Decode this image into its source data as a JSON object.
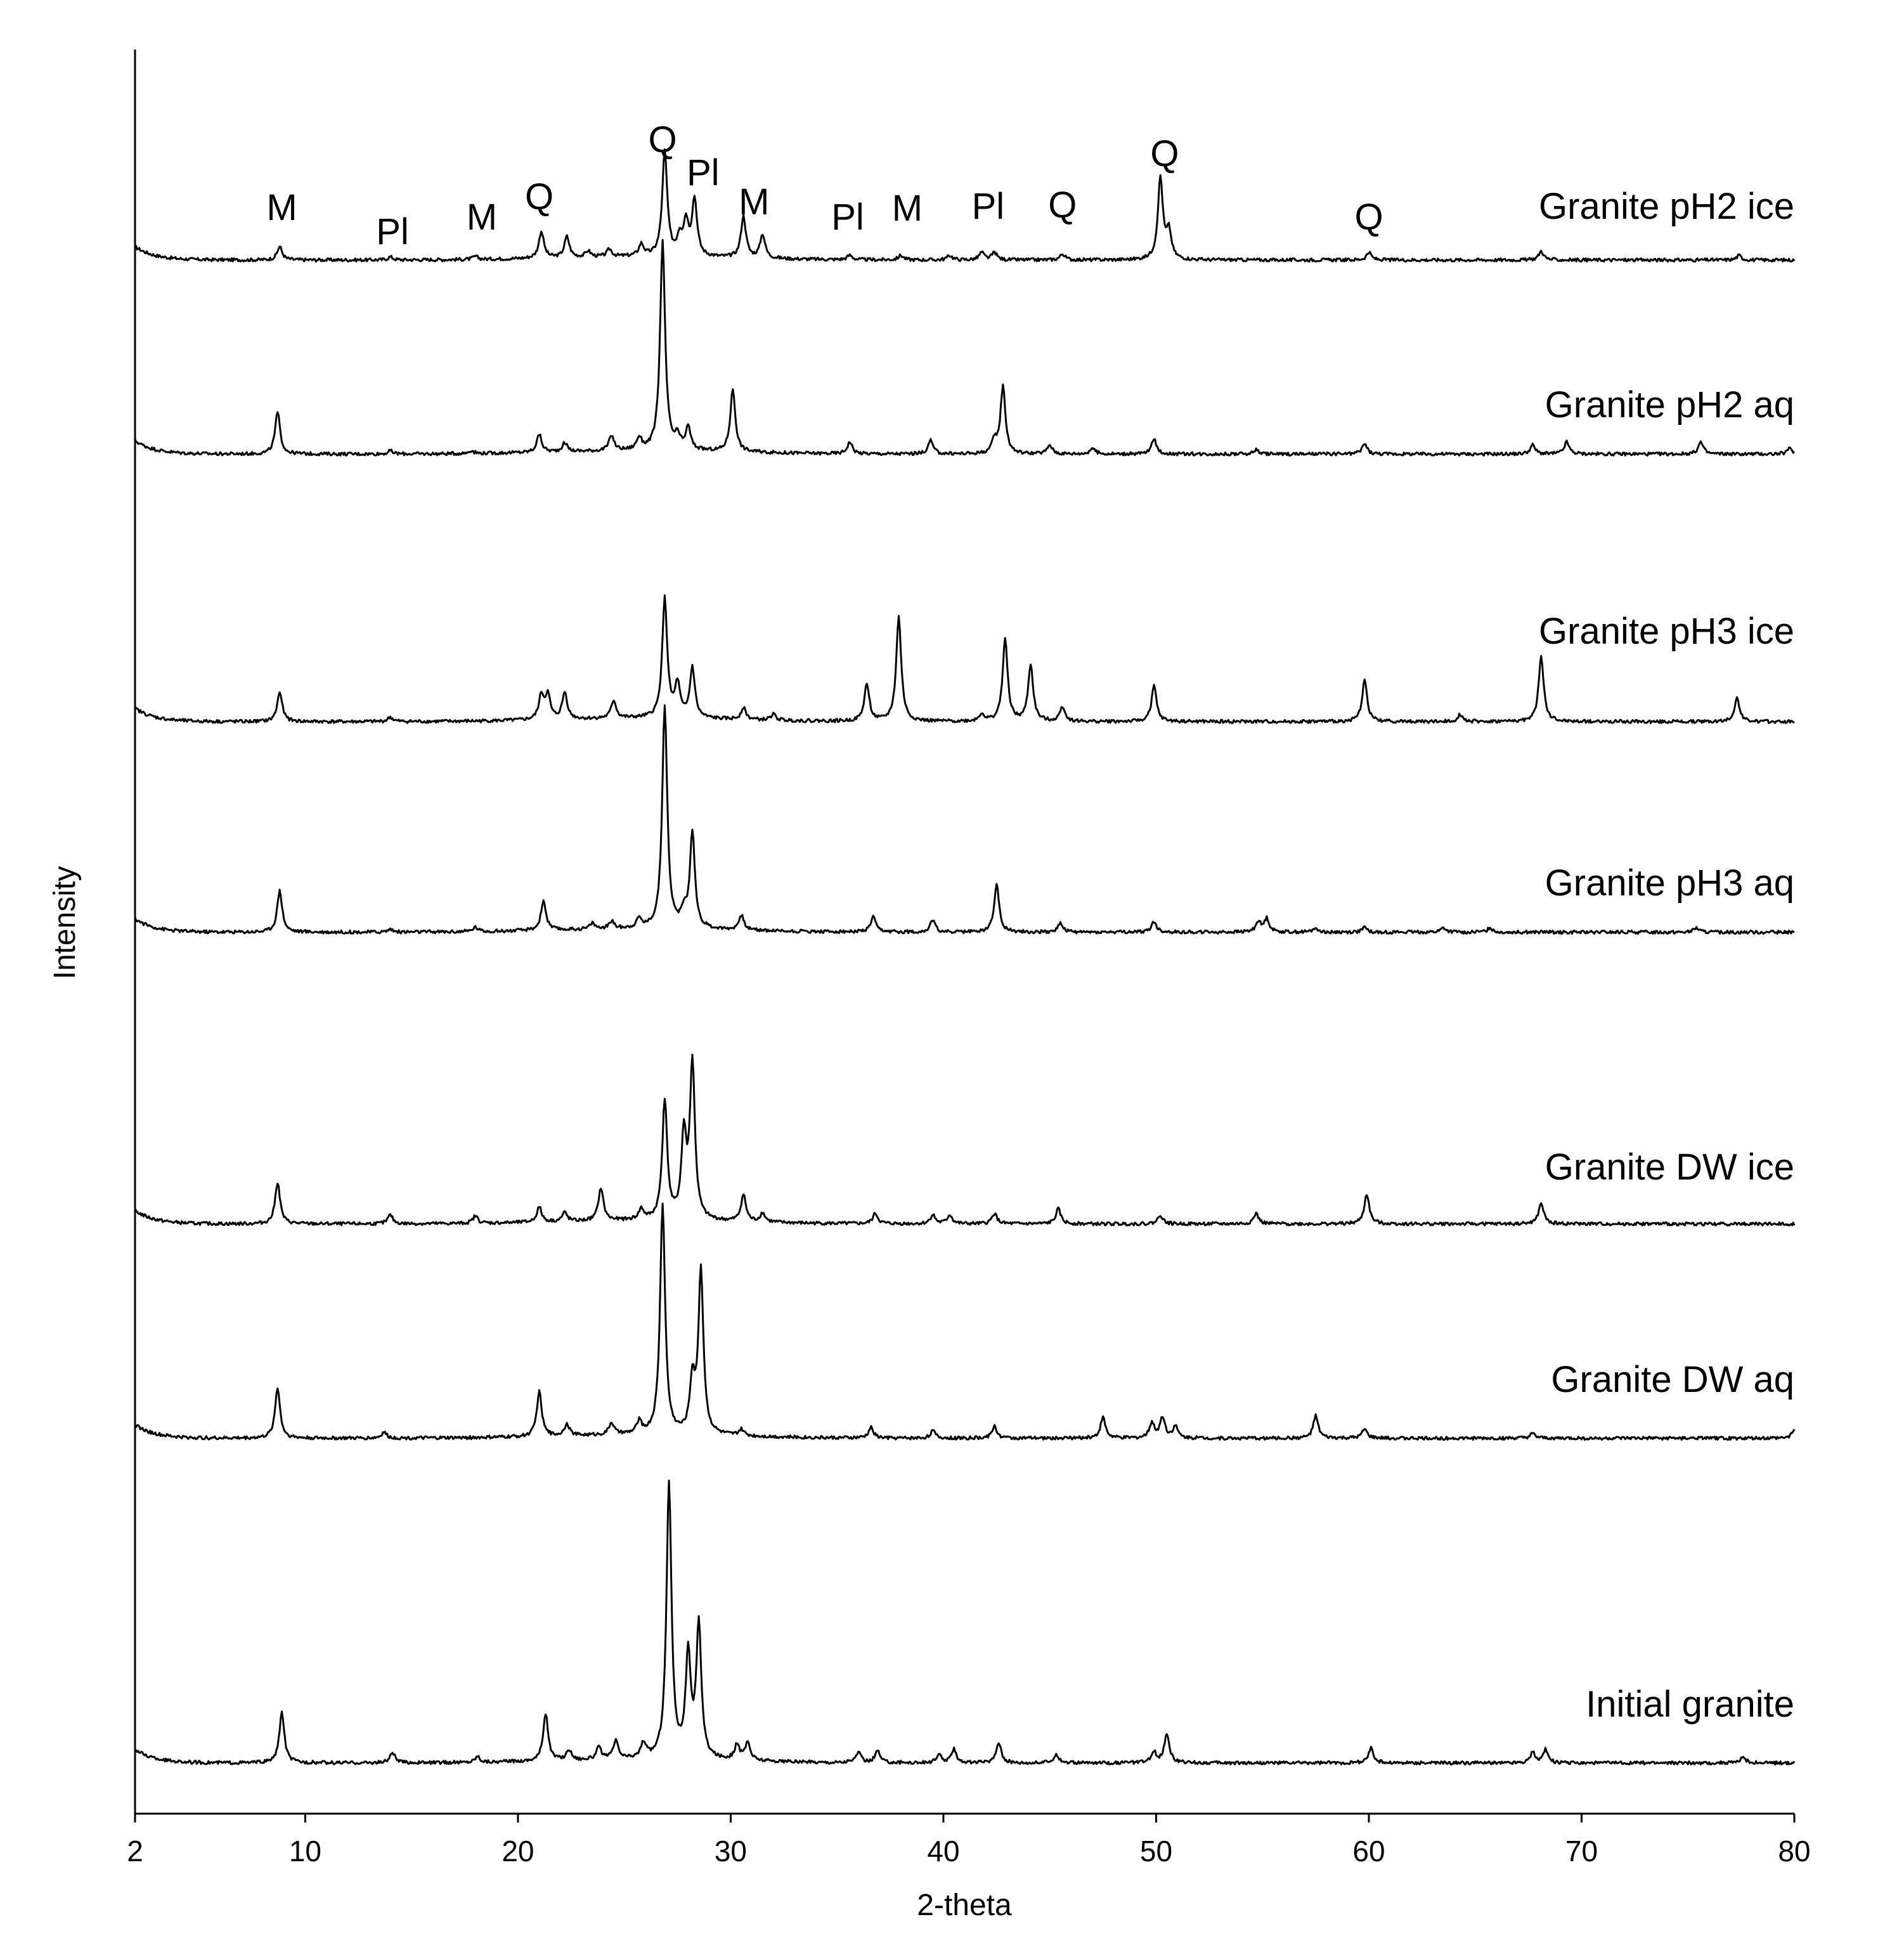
{
  "chart_data": {
    "type": "line",
    "title": "",
    "xlabel": "2-theta",
    "ylabel": "Intensity",
    "xlim": [
      2,
      80
    ],
    "x_ticks": [
      2,
      10,
      20,
      30,
      40,
      50,
      60,
      70,
      80
    ],
    "y_ticks": [],
    "grid": false,
    "legend": "none",
    "line_color": "#000000",
    "series": [
      {
        "name": "Granite pH2 ice",
        "peaks": [
          [
            8.8,
            9
          ],
          [
            14,
            2
          ],
          [
            18,
            2
          ],
          [
            21.1,
            18
          ],
          [
            22.3,
            14
          ],
          [
            23.3,
            4
          ],
          [
            24.3,
            5
          ],
          [
            25.8,
            8
          ],
          [
            26.9,
            70
          ],
          [
            27.6,
            12
          ],
          [
            27.9,
            22
          ],
          [
            28.3,
            38
          ],
          [
            30.6,
            28
          ],
          [
            31.5,
            16
          ],
          [
            35.6,
            3
          ],
          [
            38,
            3
          ],
          [
            40.3,
            3
          ],
          [
            41.8,
            5
          ],
          [
            42.4,
            5
          ],
          [
            45.6,
            4
          ],
          [
            50.2,
            55
          ],
          [
            50.6,
            18
          ],
          [
            60,
            5
          ],
          [
            68.1,
            6
          ],
          [
            77.4,
            3
          ]
        ]
      },
      {
        "name": "Granite pH2 aq",
        "peaks": [
          [
            8.7,
            28
          ],
          [
            14,
            2
          ],
          [
            17.8,
            2
          ],
          [
            21,
            12
          ],
          [
            22.2,
            6
          ],
          [
            24.4,
            10
          ],
          [
            25.7,
            8
          ],
          [
            26.8,
            140
          ],
          [
            27.5,
            8
          ],
          [
            28,
            15
          ],
          [
            30.1,
            42
          ],
          [
            35.6,
            8
          ],
          [
            39.4,
            9
          ],
          [
            42.4,
            8
          ],
          [
            42.8,
            45
          ],
          [
            45,
            6
          ],
          [
            47,
            4
          ],
          [
            49.9,
            10
          ],
          [
            54.7,
            3
          ],
          [
            59.8,
            7
          ],
          [
            67.7,
            6
          ],
          [
            69.3,
            8
          ],
          [
            75.6,
            8
          ],
          [
            79.8,
            4
          ]
        ]
      },
      {
        "name": "Granite pH3 ice",
        "peaks": [
          [
            8.8,
            20
          ],
          [
            14,
            3
          ],
          [
            21.1,
            16
          ],
          [
            21.4,
            16
          ],
          [
            22.2,
            18
          ],
          [
            24.5,
            12
          ],
          [
            26.9,
            80
          ],
          [
            27.5,
            22
          ],
          [
            28.2,
            34
          ],
          [
            30.6,
            8
          ],
          [
            32,
            4
          ],
          [
            36.4,
            25
          ],
          [
            37.9,
            70
          ],
          [
            41.8,
            5
          ],
          [
            42.9,
            55
          ],
          [
            44.1,
            38
          ],
          [
            45.6,
            10
          ],
          [
            49.9,
            24
          ],
          [
            59.8,
            28
          ],
          [
            64.3,
            5
          ],
          [
            68.1,
            44
          ],
          [
            77.3,
            16
          ]
        ]
      },
      {
        "name": "Granite pH3 aq",
        "peaks": [
          [
            8.8,
            28
          ],
          [
            14,
            2
          ],
          [
            18,
            3
          ],
          [
            21.2,
            20
          ],
          [
            23.5,
            4
          ],
          [
            24.4,
            5
          ],
          [
            25.7,
            6
          ],
          [
            26.9,
            150
          ],
          [
            27.8,
            10
          ],
          [
            28.2,
            64
          ],
          [
            30.5,
            10
          ],
          [
            36.7,
            10
          ],
          [
            39.5,
            8
          ],
          [
            42.5,
            32
          ],
          [
            45.5,
            6
          ],
          [
            49.9,
            7
          ],
          [
            54.8,
            7
          ],
          [
            55.2,
            9
          ],
          [
            57.5,
            3
          ],
          [
            59.8,
            3
          ],
          [
            63.5,
            3
          ],
          [
            65.7,
            3
          ],
          [
            75.4,
            3
          ]
        ]
      },
      {
        "name": "Granite DW ice",
        "peaks": [
          [
            8.7,
            28
          ],
          [
            14,
            6
          ],
          [
            18,
            5
          ],
          [
            21,
            10
          ],
          [
            22.2,
            6
          ],
          [
            23.9,
            22
          ],
          [
            25.8,
            7
          ],
          [
            26.9,
            80
          ],
          [
            27.8,
            55
          ],
          [
            28.2,
            105
          ],
          [
            30.6,
            18
          ],
          [
            31.5,
            6
          ],
          [
            36.8,
            7
          ],
          [
            39.5,
            6
          ],
          [
            40.3,
            6
          ],
          [
            42.4,
            7
          ],
          [
            45.4,
            10
          ],
          [
            50.2,
            6
          ],
          [
            54.7,
            7
          ],
          [
            59.9,
            20
          ],
          [
            68.1,
            14
          ]
        ]
      },
      {
        "name": "Granite DW aq",
        "peaks": [
          [
            8.7,
            34
          ],
          [
            13.7,
            4
          ],
          [
            21,
            30
          ],
          [
            22.3,
            8
          ],
          [
            24.4,
            8
          ],
          [
            25.7,
            8
          ],
          [
            26.8,
            155
          ],
          [
            28.2,
            35
          ],
          [
            28.6,
            110
          ],
          [
            30.5,
            4
          ],
          [
            36.6,
            7
          ],
          [
            39.5,
            5
          ],
          [
            42.4,
            8
          ],
          [
            47.5,
            14
          ],
          [
            49.8,
            10
          ],
          [
            50.3,
            14
          ],
          [
            50.9,
            8
          ],
          [
            57.5,
            15
          ],
          [
            59.8,
            6
          ],
          [
            67.7,
            3
          ],
          [
            80,
            6
          ]
        ]
      },
      {
        "name": "Initial granite",
        "peaks": [
          [
            8.9,
            34
          ],
          [
            14.1,
            7
          ],
          [
            18.1,
            4
          ],
          [
            21.3,
            32
          ],
          [
            22.4,
            7
          ],
          [
            23.8,
            8
          ],
          [
            24.6,
            12
          ],
          [
            25.9,
            10
          ],
          [
            27.1,
            185
          ],
          [
            28,
            68
          ],
          [
            28.5,
            90
          ],
          [
            30.3,
            10
          ],
          [
            30.8,
            12
          ],
          [
            36,
            7
          ],
          [
            36.9,
            8
          ],
          [
            39.8,
            5
          ],
          [
            40.5,
            9
          ],
          [
            42.6,
            14
          ],
          [
            45.3,
            6
          ],
          [
            49.9,
            7
          ],
          [
            50.5,
            20
          ],
          [
            60.1,
            10
          ],
          [
            67.7,
            7
          ],
          [
            68.3,
            9
          ],
          [
            77.6,
            4
          ]
        ]
      }
    ],
    "annotations": [
      {
        "text": "M",
        "x": 8.9
      },
      {
        "text": "Pl",
        "x": 14.1
      },
      {
        "text": "M",
        "x": 18.3
      },
      {
        "text": "Q",
        "x": 21.0
      },
      {
        "text": "Q",
        "x": 26.8
      },
      {
        "text": "Pl",
        "x": 28.7
      },
      {
        "text": "M",
        "x": 31.1
      },
      {
        "text": "Pl",
        "x": 35.5
      },
      {
        "text": "M",
        "x": 38.3
      },
      {
        "text": "Pl",
        "x": 42.1
      },
      {
        "text": "Q",
        "x": 45.6
      },
      {
        "text": "Q",
        "x": 50.4
      },
      {
        "text": "Q",
        "x": 60.0
      }
    ]
  }
}
